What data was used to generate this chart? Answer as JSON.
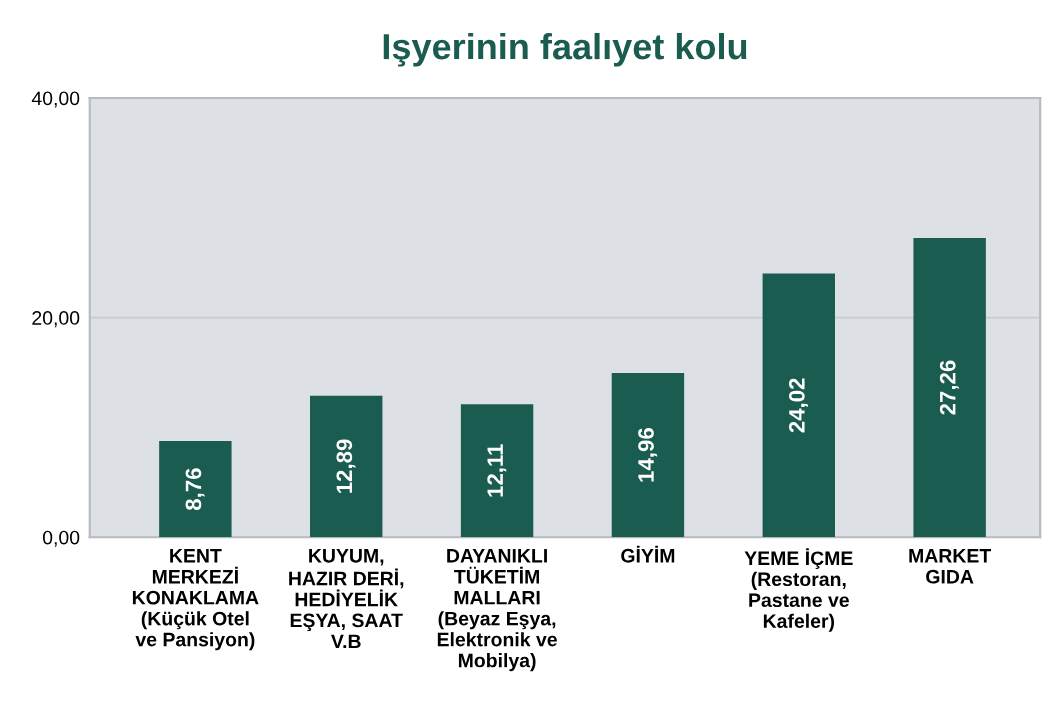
{
  "chart_data": {
    "type": "bar",
    "title": "Işyerinin faalıyet kolu",
    "categories": [
      "KENT\nMERKEZİ\nKONAKLAMA\n(Küçük Otel\nve Pansiyon)",
      "KUYUM,\nHAZIR DERİ,\nHEDİYELİK\nEŞYA, SAAT\nV.B",
      "DAYANIKLI\nTÜKETİM\nMALLARI\n(Beyaz Eşya,\nElektronik ve\nMobilya)",
      "GİYİM",
      "YEME İÇME\n(Restoran,\nPastane ve\nKafeler)",
      "MARKET\nGIDA"
    ],
    "values": [
      8.76,
      12.89,
      12.11,
      14.96,
      24.02,
      27.26
    ],
    "value_labels": [
      "8,76",
      "12,89",
      "12,11",
      "14,96",
      "24,02",
      "27,26"
    ],
    "color": "#1b5c50",
    "ylim": [
      0,
      40
    ],
    "yticks": [
      {
        "value": 0,
        "label": "0,00"
      },
      {
        "value": 20,
        "label": "20,00"
      },
      {
        "value": 40,
        "label": "40,00"
      }
    ],
    "grid": "y"
  }
}
